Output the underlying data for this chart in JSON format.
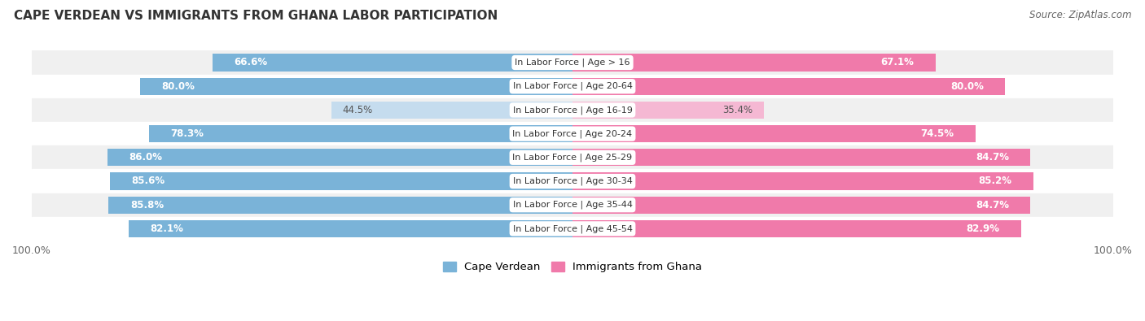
{
  "title": "CAPE VERDEAN VS IMMIGRANTS FROM GHANA LABOR PARTICIPATION",
  "source": "Source: ZipAtlas.com",
  "categories": [
    "In Labor Force | Age > 16",
    "In Labor Force | Age 20-64",
    "In Labor Force | Age 16-19",
    "In Labor Force | Age 20-24",
    "In Labor Force | Age 25-29",
    "In Labor Force | Age 30-34",
    "In Labor Force | Age 35-44",
    "In Labor Force | Age 45-54"
  ],
  "cape_verdean": [
    66.6,
    80.0,
    44.5,
    78.3,
    86.0,
    85.6,
    85.8,
    82.1
  ],
  "ghana": [
    67.1,
    80.0,
    35.4,
    74.5,
    84.7,
    85.2,
    84.7,
    82.9
  ],
  "cape_verdean_color": "#7ab3d8",
  "cape_verdean_light_color": "#c5dcee",
  "ghana_color": "#f07aaa",
  "ghana_light_color": "#f5b8d3",
  "row_bg_even": "#f0f0f0",
  "row_bg_odd": "#ffffff",
  "bar_height": 0.72,
  "figsize": [
    14.06,
    3.95
  ],
  "dpi": 100,
  "threshold": 55
}
